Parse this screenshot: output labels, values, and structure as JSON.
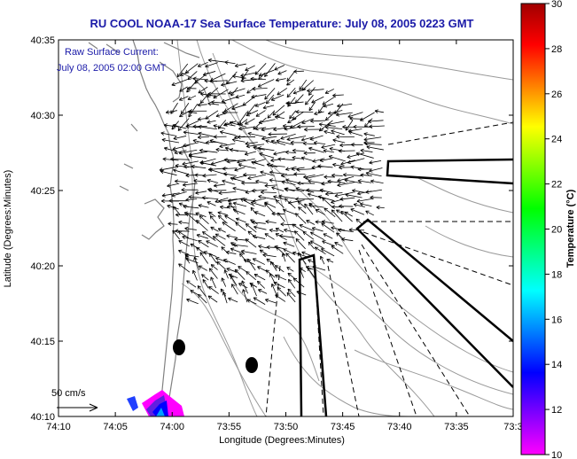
{
  "title": "RU COOL  NOAA-17  Sea Surface Temperature:  July 08, 2005 0223 GMT",
  "annotation_line1": "Raw Surface Current:",
  "annotation_line2": "July 08, 2005 02:00 GMT",
  "scale_label": "50 cm/s",
  "x_axis_label": "Longitude (Degrees:Minutes)",
  "y_axis_label": "Latitude (Degrees:Minutes)",
  "colorbar_label": "Temperature (°C)",
  "x_ticks": [
    "74:10",
    "74:05",
    "74:00",
    "73:55",
    "73:50",
    "73:45",
    "73:40",
    "73:35",
    "73:3"
  ],
  "y_ticks": [
    "40:35",
    "40:30",
    "40:25",
    "40:20",
    "40:15",
    "40:10"
  ],
  "colorbar": {
    "min": 10,
    "max": 30,
    "ticks": [
      "30",
      "28",
      "26",
      "24",
      "22",
      "20",
      "18",
      "16",
      "14",
      "12",
      "10"
    ],
    "colors": [
      "#ff00ff",
      "#8000ff",
      "#0000ff",
      "#0080ff",
      "#00ffff",
      "#00ff80",
      "#00ff00",
      "#80ff00",
      "#ffff00",
      "#ff8000",
      "#ff0000",
      "#a00000"
    ]
  },
  "colors": {
    "title": "#1a1aa8",
    "coast": "#888888",
    "vector": "#000000"
  }
}
